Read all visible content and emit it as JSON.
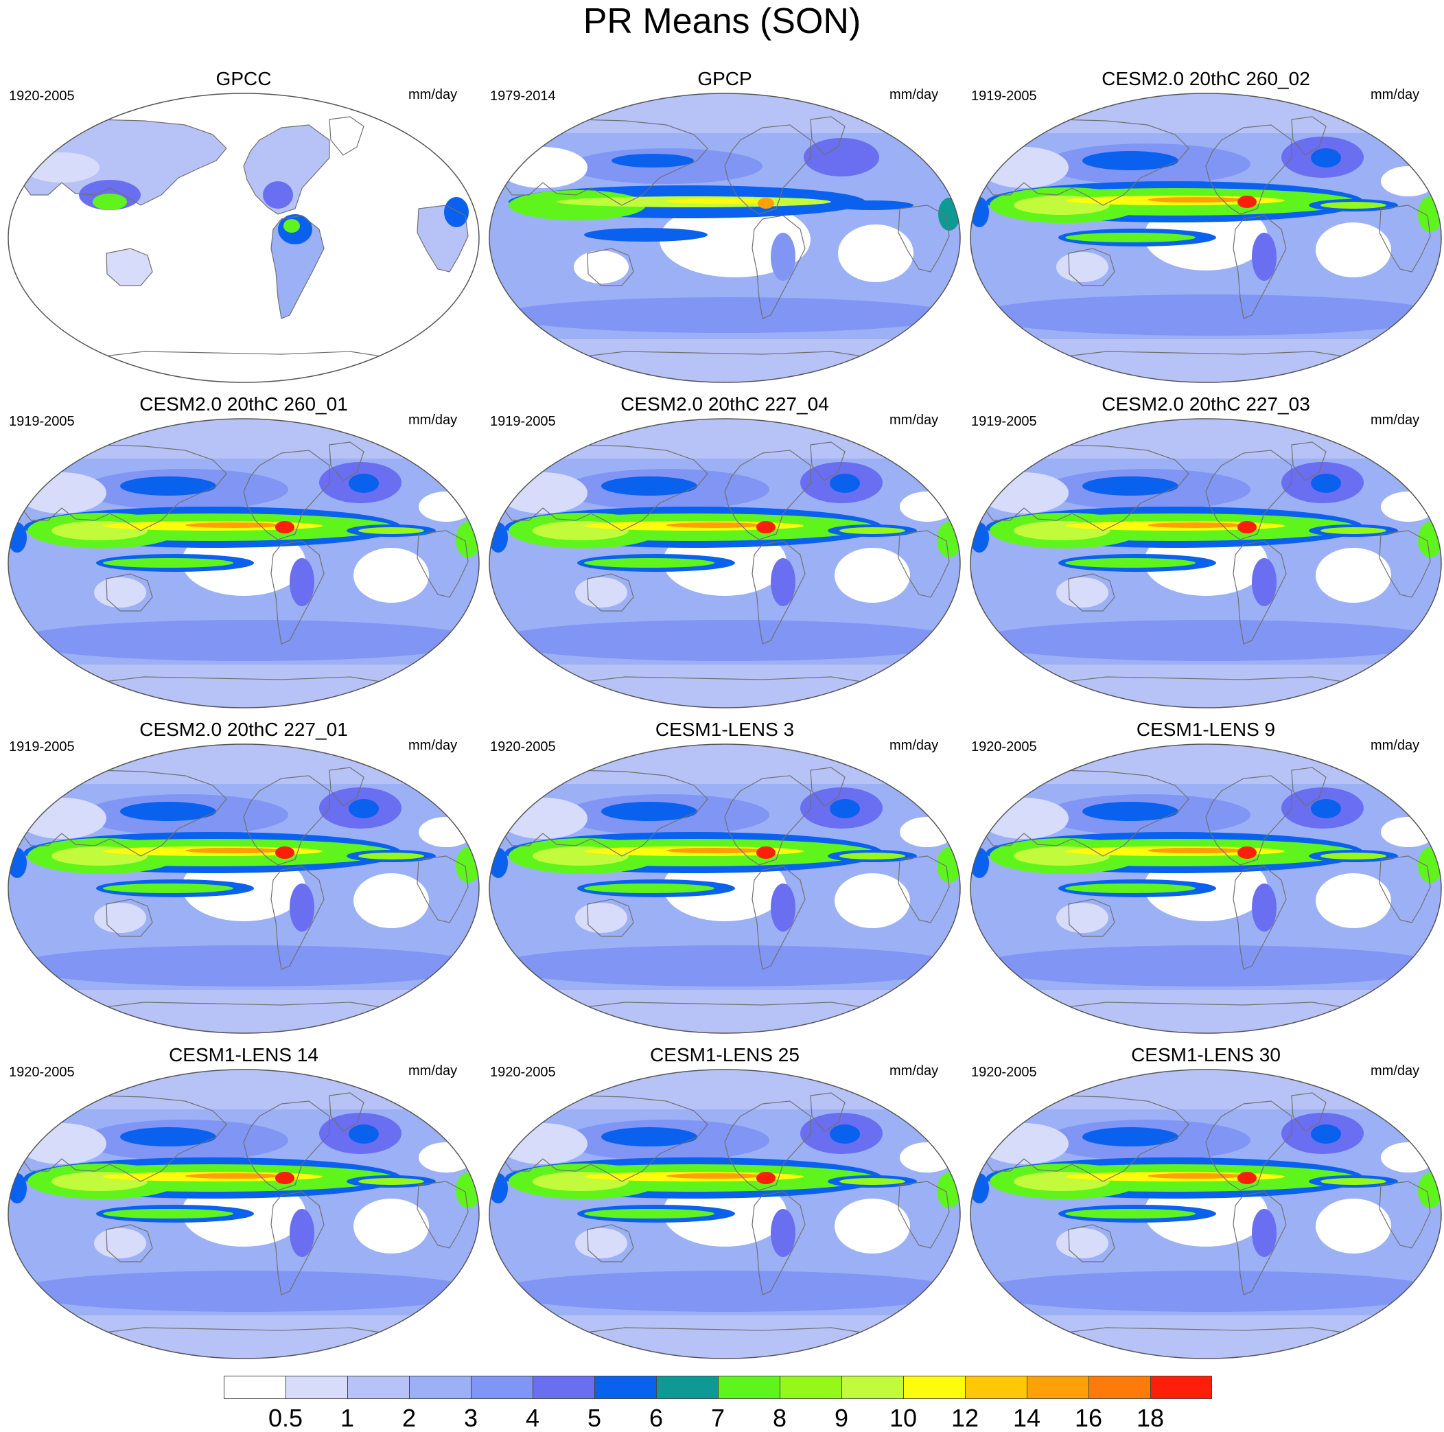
{
  "title": "PR Means (SON)",
  "panels": [
    {
      "title": "GPCC",
      "period": "1920-2005",
      "unit": "mm/day",
      "style": "obs_land"
    },
    {
      "title": "GPCP",
      "period": "1979-2014",
      "unit": "mm/day",
      "style": "obs"
    },
    {
      "title": "CESM2.0 20thC 260_02",
      "period": "1919-2005",
      "unit": "mm/day",
      "style": "model"
    },
    {
      "title": "CESM2.0 20thC 260_01",
      "period": "1919-2005",
      "unit": "mm/day",
      "style": "model"
    },
    {
      "title": "CESM2.0 20thC 227_04",
      "period": "1919-2005",
      "unit": "mm/day",
      "style": "model"
    },
    {
      "title": "CESM2.0 20thC 227_03",
      "period": "1919-2005",
      "unit": "mm/day",
      "style": "model"
    },
    {
      "title": "CESM2.0 20thC 227_01",
      "period": "1919-2005",
      "unit": "mm/day",
      "style": "model"
    },
    {
      "title": "CESM1-LENS 3",
      "period": "1920-2005",
      "unit": "mm/day",
      "style": "model"
    },
    {
      "title": "CESM1-LENS 9",
      "period": "1920-2005",
      "unit": "mm/day",
      "style": "model"
    },
    {
      "title": "CESM1-LENS 14",
      "period": "1920-2005",
      "unit": "mm/day",
      "style": "model"
    },
    {
      "title": "CESM1-LENS 25",
      "period": "1920-2005",
      "unit": "mm/day",
      "style": "model"
    },
    {
      "title": "CESM1-LENS 30",
      "period": "1920-2005",
      "unit": "mm/day",
      "style": "model"
    }
  ],
  "colorbar": {
    "labels": [
      "0.5",
      "1",
      "2",
      "3",
      "4",
      "5",
      "6",
      "7",
      "8",
      "9",
      "10",
      "12",
      "14",
      "16",
      "18"
    ],
    "colors": [
      "#ffffff",
      "#d6dcfa",
      "#b7c3f7",
      "#9cb0f6",
      "#8095f4",
      "#6a6ef0",
      "#0a61ee",
      "#0e9a94",
      "#5ff51c",
      "#96f71a",
      "#c2fa3c",
      "#fdfc0c",
      "#fec807",
      "#fea108",
      "#fe7a09",
      "#ff1e0a"
    ]
  }
}
